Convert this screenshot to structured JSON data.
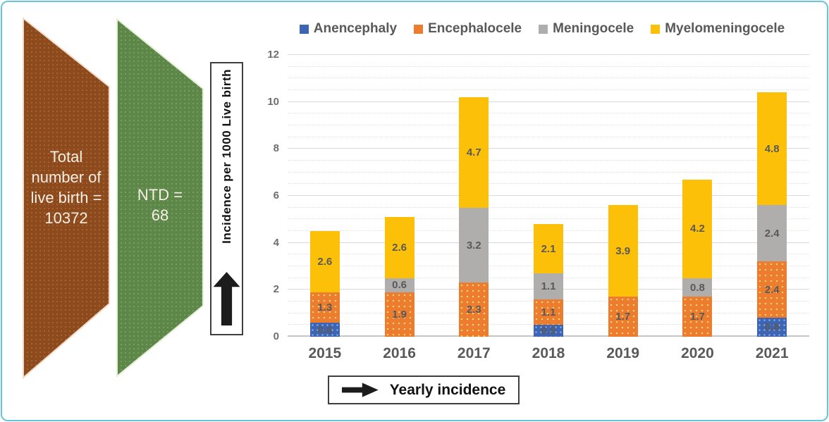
{
  "frame": {
    "border_color": "#67c6de"
  },
  "funnel": {
    "total_shape": {
      "label": "Total number of live birth = 10372",
      "color": "#8c4a1d"
    },
    "ntd_shape": {
      "label": "NTD = 68",
      "color": "#5d8748"
    }
  },
  "y_axis_box": {
    "label": "Incidence per 1000 Live birth",
    "arrow_icon": "up-arrow"
  },
  "x_axis_box": {
    "label": "Yearly incidence",
    "arrow_icon": "right-arrow"
  },
  "chart_data": {
    "type": "bar",
    "stacked": true,
    "title": "",
    "ylabel": "Incidence per 1000 Live birth",
    "xlabel": "Yearly incidence",
    "categories": [
      "2015",
      "2016",
      "2017",
      "2018",
      "2019",
      "2020",
      "2021"
    ],
    "series": [
      {
        "name": "Anencephaly",
        "color": "#3e65b4",
        "values": [
          0.6,
          0,
          0,
          0.5,
          0,
          0,
          0.8
        ]
      },
      {
        "name": "Encephalocele",
        "color": "#ec7d2e",
        "values": [
          1.3,
          1.9,
          2.3,
          1.1,
          1.7,
          1.7,
          2.4
        ]
      },
      {
        "name": "Meningocele",
        "color": "#afaead",
        "values": [
          0,
          0.6,
          3.2,
          1.1,
          0,
          0.8,
          2.4
        ]
      },
      {
        "name": "Myelomeningocele",
        "color": "#fdc008",
        "values": [
          2.6,
          2.6,
          4.7,
          2.1,
          3.9,
          4.2,
          4.8
        ]
      }
    ],
    "totals": [
      4.5,
      5.1,
      10.2,
      4.8,
      5.6,
      6.7,
      10.4
    ],
    "ylim": [
      0,
      12
    ],
    "ytick_step": 2,
    "minor_grid_step": 0.5,
    "grid": true,
    "legend_position": "top",
    "data_labels": true
  }
}
